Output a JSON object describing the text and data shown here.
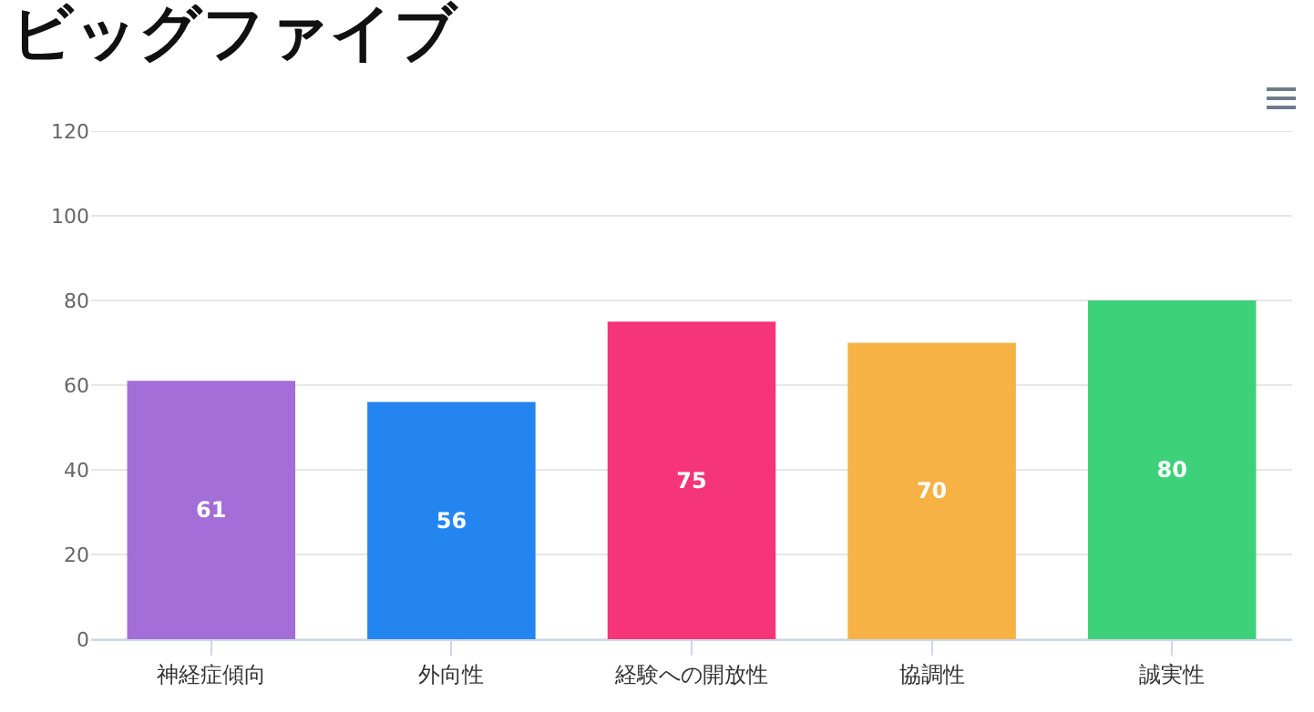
{
  "chart_data": {
    "type": "bar",
    "title": "ビッグファイブ",
    "categories": [
      "神経症傾向",
      "外向性",
      "経験への開放性",
      "協調性",
      "誠実性"
    ],
    "values": [
      61,
      56,
      75,
      70,
      80
    ],
    "colors": [
      "#a36ed8",
      "#2484f0",
      "#f53577",
      "#f6b244",
      "#3dd27a"
    ],
    "ylim": [
      0,
      120
    ],
    "yticks": [
      0,
      20,
      40,
      60,
      80,
      100,
      120
    ],
    "grid": "y",
    "data_labels": true
  }
}
